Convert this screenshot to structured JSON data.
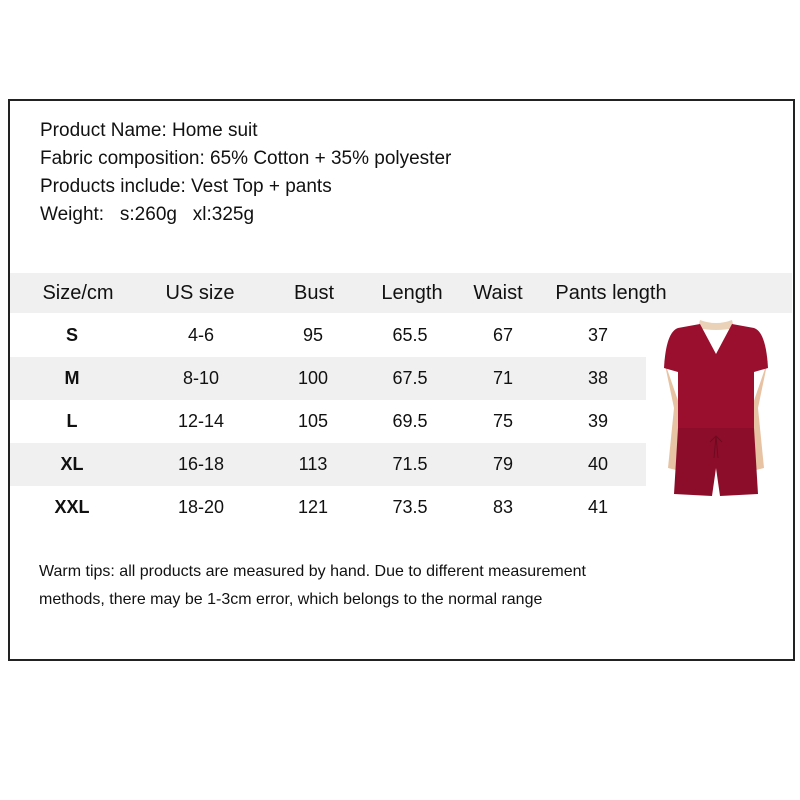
{
  "info": {
    "product_name": "Product Name: Home suit",
    "fabric": "Fabric composition: 65% Cotton + 35% polyester",
    "includes": "Products include: Vest Top + pants",
    "weight": "Weight:   s:260g   xl:325g"
  },
  "table": {
    "headers": [
      "Size/cm",
      "US size",
      "Bust",
      "Length",
      "Waist",
      "Pants length"
    ],
    "rows": [
      [
        "S",
        "4-6",
        "95",
        "65.5",
        "67",
        "37"
      ],
      [
        "M",
        "8-10",
        "100",
        "67.5",
        "71",
        "38"
      ],
      [
        "L",
        "12-14",
        "105",
        "69.5",
        "75",
        "39"
      ],
      [
        "XL",
        "16-18",
        "113",
        "71.5",
        "79",
        "40"
      ],
      [
        "XXL",
        "18-20",
        "121",
        "73.5",
        "83",
        "41"
      ]
    ]
  },
  "tips": {
    "line1": "Warm tips: all products are measured by hand. Due to different measurement",
    "line2": "methods, there may be 1-3cm error, which belongs to the normal range"
  },
  "colors": {
    "garment": "#9b0f2e",
    "row_shade": "#f0f0f0"
  }
}
